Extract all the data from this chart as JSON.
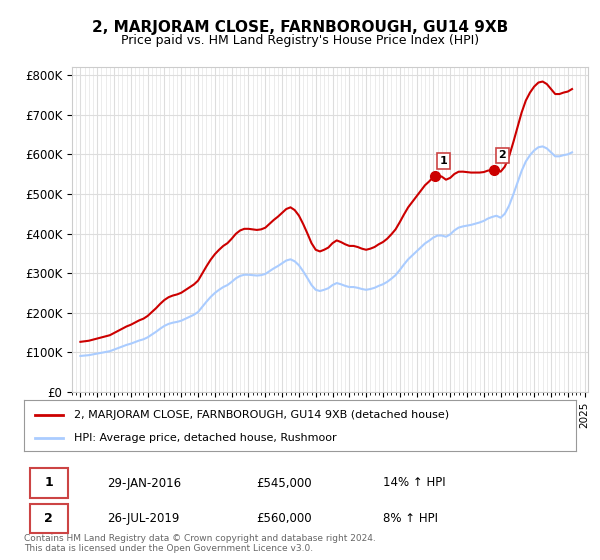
{
  "title": "2, MARJORAM CLOSE, FARNBOROUGH, GU14 9XB",
  "subtitle": "Price paid vs. HM Land Registry's House Price Index (HPI)",
  "ylabel": "",
  "ylim": [
    0,
    820000
  ],
  "yticks": [
    0,
    100000,
    200000,
    300000,
    400000,
    500000,
    600000,
    700000,
    800000
  ],
  "ytick_labels": [
    "£0",
    "£100K",
    "£200K",
    "£300K",
    "£400K",
    "£500K",
    "£600K",
    "£700K",
    "£800K"
  ],
  "line1_color": "#cc0000",
  "line2_color": "#aaccff",
  "point1_color": "#cc0000",
  "point2_color": "#cc0000",
  "legend1_label": "2, MARJORAM CLOSE, FARNBOROUGH, GU14 9XB (detached house)",
  "legend2_label": "HPI: Average price, detached house, Rushmoor",
  "annotation1_label": "1",
  "annotation1_date": "29-JAN-2016",
  "annotation1_price": "£545,000",
  "annotation1_hpi": "14% ↑ HPI",
  "annotation2_label": "2",
  "annotation2_date": "26-JUL-2019",
  "annotation2_price": "£560,000",
  "annotation2_hpi": "8% ↑ HPI",
  "footer": "Contains HM Land Registry data © Crown copyright and database right 2024.\nThis data is licensed under the Open Government Licence v3.0.",
  "bg_color": "#ffffff",
  "grid_color": "#dddddd",
  "hpi_years": [
    1995.0,
    1995.25,
    1995.5,
    1995.75,
    1996.0,
    1996.25,
    1996.5,
    1996.75,
    1997.0,
    1997.25,
    1997.5,
    1997.75,
    1998.0,
    1998.25,
    1998.5,
    1998.75,
    1999.0,
    1999.25,
    1999.5,
    1999.75,
    2000.0,
    2000.25,
    2000.5,
    2000.75,
    2001.0,
    2001.25,
    2001.5,
    2001.75,
    2002.0,
    2002.25,
    2002.5,
    2002.75,
    2003.0,
    2003.25,
    2003.5,
    2003.75,
    2004.0,
    2004.25,
    2004.5,
    2004.75,
    2005.0,
    2005.25,
    2005.5,
    2005.75,
    2006.0,
    2006.25,
    2006.5,
    2006.75,
    2007.0,
    2007.25,
    2007.5,
    2007.75,
    2008.0,
    2008.25,
    2008.5,
    2008.75,
    2009.0,
    2009.25,
    2009.5,
    2009.75,
    2010.0,
    2010.25,
    2010.5,
    2010.75,
    2011.0,
    2011.25,
    2011.5,
    2011.75,
    2012.0,
    2012.25,
    2012.5,
    2012.75,
    2013.0,
    2013.25,
    2013.5,
    2013.75,
    2014.0,
    2014.25,
    2014.5,
    2014.75,
    2015.0,
    2015.25,
    2015.5,
    2015.75,
    2016.0,
    2016.25,
    2016.5,
    2016.75,
    2017.0,
    2017.25,
    2017.5,
    2017.75,
    2018.0,
    2018.25,
    2018.5,
    2018.75,
    2019.0,
    2019.25,
    2019.5,
    2019.75,
    2020.0,
    2020.25,
    2020.5,
    2020.75,
    2021.0,
    2021.25,
    2021.5,
    2021.75,
    2022.0,
    2022.25,
    2022.5,
    2022.75,
    2023.0,
    2023.25,
    2023.5,
    2023.75,
    2024.0,
    2024.25
  ],
  "hpi_values": [
    91000,
    92000,
    93000,
    95000,
    97000,
    99000,
    101000,
    103000,
    107000,
    111000,
    115000,
    119000,
    122000,
    126000,
    130000,
    133000,
    138000,
    145000,
    152000,
    160000,
    167000,
    172000,
    175000,
    177000,
    180000,
    185000,
    190000,
    195000,
    202000,
    215000,
    228000,
    240000,
    250000,
    258000,
    265000,
    270000,
    278000,
    287000,
    293000,
    296000,
    296000,
    295000,
    294000,
    295000,
    298000,
    305000,
    312000,
    318000,
    325000,
    332000,
    335000,
    330000,
    320000,
    305000,
    288000,
    270000,
    258000,
    255000,
    258000,
    262000,
    270000,
    275000,
    272000,
    268000,
    265000,
    265000,
    263000,
    260000,
    258000,
    260000,
    263000,
    268000,
    272000,
    278000,
    286000,
    295000,
    308000,
    322000,
    335000,
    345000,
    355000,
    365000,
    375000,
    382000,
    390000,
    395000,
    395000,
    392000,
    398000,
    408000,
    415000,
    418000,
    420000,
    422000,
    425000,
    428000,
    432000,
    438000,
    442000,
    445000,
    440000,
    450000,
    470000,
    498000,
    528000,
    558000,
    582000,
    598000,
    610000,
    618000,
    620000,
    615000,
    605000,
    595000,
    595000,
    598000,
    600000,
    605000
  ],
  "price_years": [
    2016.08,
    2019.58
  ],
  "price_values": [
    545000,
    560000
  ],
  "point1_x": 2016.08,
  "point1_y": 545000,
  "point2_x": 2019.58,
  "point2_y": 560000,
  "xlim_start": 1994.5,
  "xlim_end": 2025.2,
  "xtick_years": [
    1995,
    1996,
    1997,
    1998,
    1999,
    2000,
    2001,
    2002,
    2003,
    2004,
    2005,
    2006,
    2007,
    2008,
    2009,
    2010,
    2011,
    2012,
    2013,
    2014,
    2015,
    2016,
    2017,
    2018,
    2019,
    2020,
    2021,
    2022,
    2023,
    2024,
    2025
  ]
}
